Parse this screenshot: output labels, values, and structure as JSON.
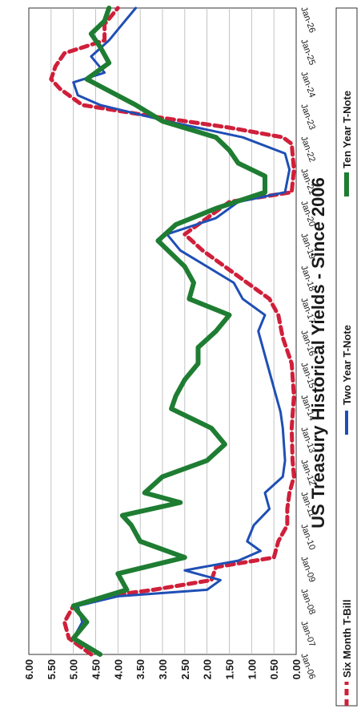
{
  "chart_data": {
    "type": "line",
    "title": "US Treasury Historical Yields - Since 2006",
    "xlabel": "",
    "ylabel": "",
    "orientation": "rotated-90-clockwise",
    "ylim": [
      0,
      6
    ],
    "y_ticks": [
      "6.00",
      "5.50",
      "5.00",
      "4.50",
      "4.00",
      "3.50",
      "3.00",
      "2.50",
      "2.00",
      "1.50",
      "1.00",
      "0.50",
      "0.00"
    ],
    "x_ticks": [
      "Jan-06",
      "Jan-07",
      "Jan-08",
      "Jan-09",
      "Jan-10",
      "Jan-11",
      "Jan-12",
      "Jan-13",
      "Jan-14",
      "Jan-15",
      "Jan-16",
      "Jan-17",
      "Jan-18",
      "Jan-19",
      "Jan-20",
      "Jan-21",
      "Jan-22",
      "Jan-23",
      "Jan-24",
      "Jan-25",
      "Jan-26"
    ],
    "grid": true,
    "legend_position": "bottom",
    "series": [
      {
        "name": "Six Month T-Bill",
        "color": "#d01f3a",
        "style": "dashed",
        "x": [
          2006.0,
          2006.5,
          2007.0,
          2007.5,
          2007.8,
          2008.0,
          2008.3,
          2008.7,
          2009.0,
          2009.5,
          2010.0,
          2010.5,
          2011.0,
          2011.5,
          2012.0,
          2013.0,
          2014.0,
          2015.0,
          2015.8,
          2016.5,
          2017.0,
          2017.5,
          2018.0,
          2018.5,
          2019.0,
          2019.5,
          2020.0,
          2020.3,
          2021.0,
          2021.8,
          2022.0,
          2022.3,
          2022.6,
          2023.0,
          2023.5,
          2023.8,
          2024.2,
          2024.6,
          2025.0,
          2025.5,
          2026.0
        ],
        "values": [
          4.6,
          5.1,
          5.2,
          5.0,
          4.3,
          3.2,
          1.9,
          1.8,
          0.5,
          0.4,
          0.2,
          0.2,
          0.15,
          0.05,
          0.08,
          0.1,
          0.05,
          0.1,
          0.3,
          0.4,
          0.6,
          1.1,
          1.6,
          2.1,
          2.5,
          2.0,
          1.5,
          0.1,
          0.05,
          0.1,
          0.3,
          1.5,
          3.0,
          4.8,
          5.3,
          5.5,
          5.4,
          5.2,
          4.3,
          4.3,
          4.0
        ]
      },
      {
        "name": "Two Year T-Note",
        "color": "#1f4fb5",
        "style": "solid",
        "x": [
          2006.0,
          2006.5,
          2007.0,
          2007.5,
          2007.8,
          2008.0,
          2008.3,
          2008.6,
          2008.9,
          2009.2,
          2009.5,
          2010.0,
          2010.5,
          2011.0,
          2011.5,
          2012.0,
          2013.0,
          2013.5,
          2014.0,
          2015.0,
          2016.0,
          2016.5,
          2017.0,
          2017.5,
          2018.0,
          2018.5,
          2019.0,
          2019.5,
          2020.0,
          2020.3,
          2021.0,
          2021.5,
          2022.0,
          2022.5,
          2023.0,
          2023.3,
          2023.7,
          2024.0,
          2024.5,
          2025.0,
          2025.5,
          2026.0
        ],
        "values": [
          4.4,
          5.0,
          4.8,
          4.9,
          4.0,
          2.0,
          1.7,
          2.5,
          1.3,
          0.8,
          1.1,
          0.95,
          0.6,
          0.7,
          0.3,
          0.25,
          0.3,
          0.35,
          0.45,
          0.65,
          0.85,
          0.7,
          1.2,
          1.4,
          2.0,
          2.6,
          2.9,
          1.8,
          1.3,
          0.25,
          0.15,
          0.25,
          1.2,
          2.9,
          4.4,
          4.9,
          5.0,
          4.3,
          4.6,
          4.2,
          3.9,
          3.6
        ]
      },
      {
        "name": "Ten Year T-Note",
        "color": "#1e7d32",
        "style": "solid",
        "x": [
          2006.0,
          2006.5,
          2007.0,
          2007.5,
          2008.0,
          2008.5,
          2009.0,
          2009.5,
          2010.0,
          2010.3,
          2010.7,
          2011.0,
          2011.5,
          2012.0,
          2012.5,
          2013.0,
          2013.6,
          2014.0,
          2014.5,
          2015.0,
          2015.5,
          2016.0,
          2016.5,
          2017.0,
          2017.5,
          2018.0,
          2018.8,
          2019.3,
          2019.8,
          2020.3,
          2020.8,
          2021.2,
          2021.6,
          2022.0,
          2022.5,
          2023.0,
          2023.8,
          2024.3,
          2024.8,
          2025.2,
          2025.6,
          2026.0
        ],
        "values": [
          4.4,
          5.0,
          4.7,
          5.0,
          3.8,
          4.0,
          2.5,
          3.5,
          3.7,
          3.9,
          2.6,
          3.4,
          3.0,
          2.0,
          1.6,
          1.9,
          2.8,
          2.7,
          2.5,
          2.2,
          2.2,
          1.8,
          1.5,
          2.4,
          2.3,
          2.5,
          3.1,
          2.7,
          1.8,
          0.7,
          0.7,
          1.3,
          1.5,
          1.8,
          3.0,
          3.6,
          4.7,
          4.2,
          4.4,
          4.6,
          4.3,
          4.2
        ]
      }
    ]
  }
}
